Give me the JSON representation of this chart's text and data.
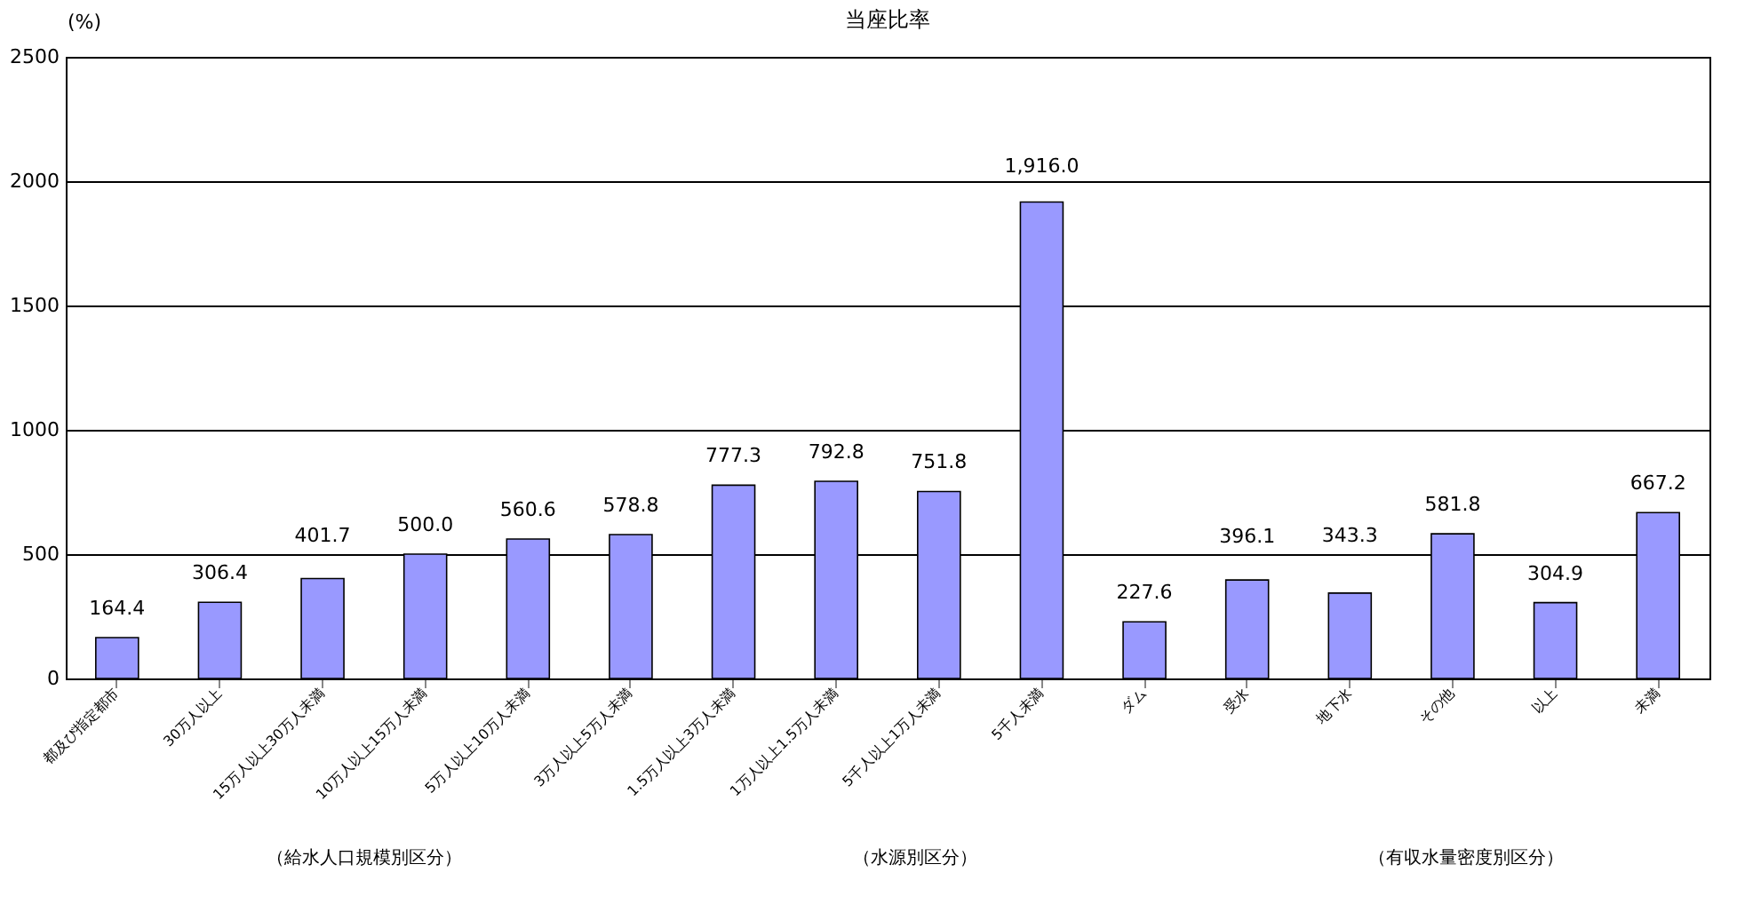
{
  "chart_data": {
    "type": "bar",
    "title": "当座比率",
    "ylabel": "(%)",
    "categories": [
      "都及び指定都市",
      "30万人以上",
      "15万人以上30万人未満",
      "10万人以上15万人未満",
      "5万人以上10万人未満",
      "3万人以上5万人未満",
      "1.5万人以上3万人未満",
      "1万人以上1.5万人未満",
      "5千人以上1万人未満",
      "5千人未満",
      "ダム",
      "受水",
      "地下水",
      "その他",
      "以上",
      "未満"
    ],
    "values": [
      164.4,
      306.4,
      401.7,
      500.0,
      560.6,
      578.8,
      777.3,
      792.8,
      751.8,
      1916.0,
      227.6,
      396.1,
      343.3,
      581.8,
      304.9,
      667.2
    ],
    "value_labels": [
      "164.4",
      "306.4",
      "401.7",
      "500.0",
      "560.6",
      "578.8",
      "777.3",
      "792.8",
      "751.8",
      "1,916.0",
      "227.6",
      "396.1",
      "343.3",
      "581.8",
      "304.9",
      "667.2"
    ],
    "color": "#9999ff",
    "ylim": [
      0,
      2500
    ],
    "yticks": [
      0,
      500,
      1000,
      1500,
      2000,
      2500
    ],
    "grid": "y",
    "annotations": [
      "（給水人口規模別区分）",
      "（水源別区分）",
      "（有収水量密度別区分）"
    ]
  }
}
